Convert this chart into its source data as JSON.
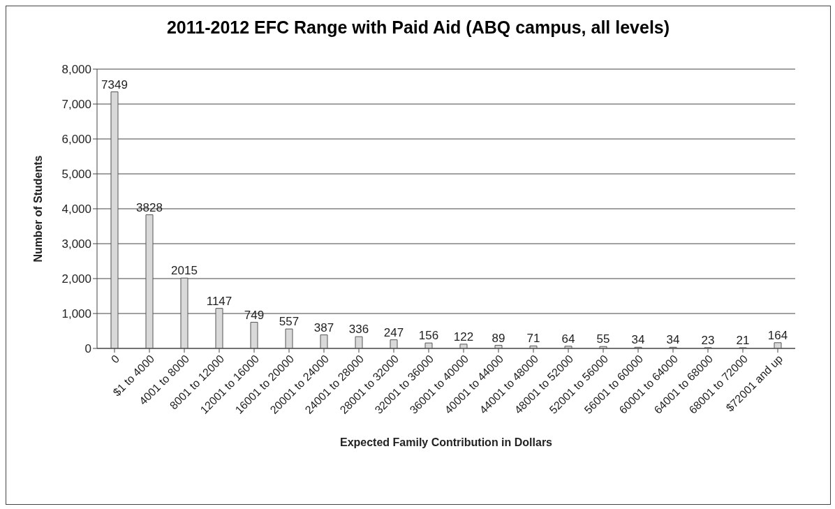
{
  "chart_data": {
    "type": "bar",
    "title": "2011-2012 EFC Range with Paid Aid (ABQ campus, all levels)",
    "xlabel": "Expected Family Contribution in Dollars",
    "ylabel": "Number of Students",
    "categories": [
      "0",
      "$1 to 4000",
      "4001 to 8000",
      "8001 to 12000",
      "12001 to 16000",
      "16001 to 20000",
      "20001 to 24000",
      "24001 to 28000",
      "28001 to 32000",
      "32001 to 36000",
      "36001 to 40000",
      "40001 to 44000",
      "44001 to 48000",
      "48001 to 52000",
      "52001 to 56000",
      "56001 to 60000",
      "60001 to 64000",
      "64001 to 68000",
      "68001 to 72000",
      "$72001 and up"
    ],
    "values": [
      7349,
      3828,
      2015,
      1147,
      749,
      557,
      387,
      336,
      247,
      156,
      122,
      89,
      71,
      64,
      55,
      34,
      34,
      23,
      21,
      164
    ],
    "color": "#d9d9d9",
    "ylim": [
      0,
      8000
    ],
    "yticks": [
      {
        "value": 0,
        "label": "0"
      },
      {
        "value": 1000,
        "label": "1,000"
      },
      {
        "value": 2000,
        "label": "2,000"
      },
      {
        "value": 3000,
        "label": "3,000"
      },
      {
        "value": 4000,
        "label": "4,000"
      },
      {
        "value": 5000,
        "label": "5,000"
      },
      {
        "value": 6000,
        "label": "6,000"
      },
      {
        "value": 7000,
        "label": "7,000"
      },
      {
        "value": 8000,
        "label": "8,000"
      }
    ],
    "grid": "y",
    "data_labels": true
  }
}
